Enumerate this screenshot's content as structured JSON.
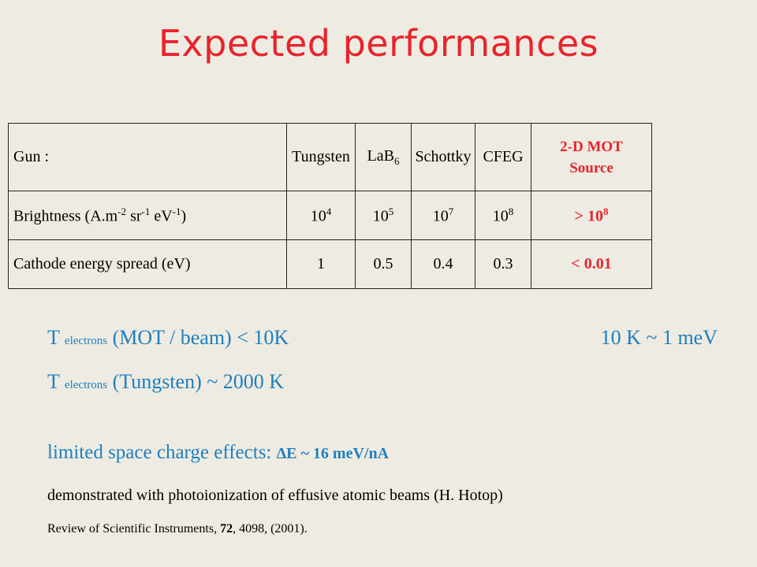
{
  "title": "Expected performances",
  "table": {
    "header": {
      "gun_label": "Gun :",
      "tungsten": "Tungsten",
      "lab_base": "LaB",
      "lab_sub": "6",
      "schottky": "Schottky",
      "cfeg": "CFEG",
      "mot_line1": "2-D MOT",
      "mot_line2": "Source"
    },
    "brightness": {
      "label_a": "Brightness (A.m",
      "label_a_sup": "-2",
      "label_b": " sr",
      "label_b_sup": "-1",
      "label_c": " eV",
      "label_c_sup": "-1",
      "label_d": ")",
      "base": "10",
      "tungsten_exp": "4",
      "lab_exp": "5",
      "schottky_exp": "7",
      "cfeg_exp": "8",
      "mot_prefix": "> 10",
      "mot_exp": "8"
    },
    "spread": {
      "label": "Cathode energy spread (eV)",
      "tungsten": "1",
      "lab": "0.5",
      "schottky": "0.4",
      "cfeg": "0.3",
      "mot": "< 0.01"
    }
  },
  "lines": {
    "t1_prefix": "T ",
    "t1_sub": "electrons",
    "t1_rest": " (MOT / beam) < 10K",
    "t1_note": "10 K ~ 1 meV",
    "t2_prefix": "T ",
    "t2_sub": "electrons",
    "t2_rest": " (Tungsten)  ~ 2000 K",
    "space_charge": "limited space charge effects: ",
    "space_charge_value": "ΔE ~ 16 meV/nA",
    "demonstrated": "demonstrated with photoionization of effusive atomic beams (H. Hotop)",
    "review_a": "Review of Scientific Instruments, ",
    "review_vol": "72",
    "review_b": ", 4098, (2001)."
  },
  "colors": {
    "background": "#eeece2",
    "title": "#e8242c",
    "highlight": "#e8242c",
    "text_blue": "#1f7fbf"
  }
}
